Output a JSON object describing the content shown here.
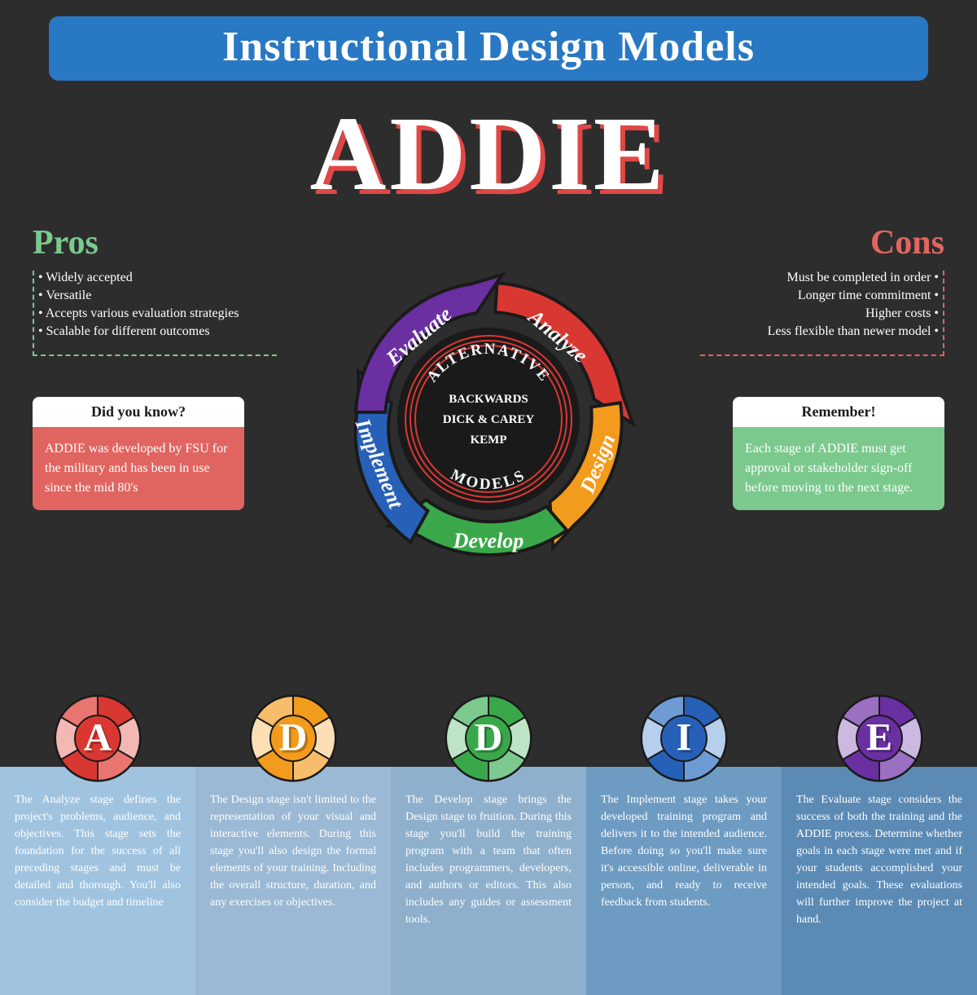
{
  "header": {
    "title": "Instructional Design Models"
  },
  "main_title": "ADDIE",
  "colors": {
    "banner": "#2878c4",
    "pros": "#7bc98d",
    "cons": "#e06560",
    "bg": "#2d2d2d",
    "stage_bgs": [
      "#a0c4e0",
      "#9bb9d4",
      "#8fb0cc",
      "#6e9bc2",
      "#5b8ab5"
    ]
  },
  "pros": {
    "title": "Pros",
    "items": [
      "• Widely accepted",
      "• Versatile",
      "• Accepts various evaluation strategies",
      "• Scalable for different outcomes"
    ]
  },
  "cons": {
    "title": "Cons",
    "items": [
      "Must be completed in order •",
      "Longer time commitment •",
      "Higher costs •",
      "Less flexible than newer model •"
    ]
  },
  "callout_left": {
    "header": "Did you know?",
    "body": "ADDIE was developed by FSU  for the military and has been in use since the mid 80's"
  },
  "callout_right": {
    "header": "Remember!",
    "body": "Each stage of ADDIE must get approval or stakeholder sign-off before moving to the next stage."
  },
  "cycle": {
    "segments": [
      {
        "label": "Analyze",
        "color": "#d93832"
      },
      {
        "label": "Design",
        "color": "#f39b1c"
      },
      {
        "label": "Develop",
        "color": "#3aa84a"
      },
      {
        "label": "Implement",
        "color": "#2760b7"
      },
      {
        "label": "Evaluate",
        "color": "#6a2fa0"
      }
    ],
    "center": {
      "top": "ALTERNATIVE",
      "lines": [
        "BACKWARDS",
        "DICK & CAREY",
        "KEMP"
      ],
      "bottom": "MODELS"
    }
  },
  "stages": [
    {
      "letter": "A",
      "color_dark": "#d93832",
      "color_mid": "#e8756f",
      "color_light": "#f4b8b4",
      "bg": "#a0c4e0",
      "text": "The Analyze stage defines the project's problems, audience, and objectives. This stage sets the foundation for the success of all preceding stages and must be detailed and thorough. You'll also consider  the budget and timeline"
    },
    {
      "letter": "D",
      "color_dark": "#f39b1c",
      "color_mid": "#f7bd6a",
      "color_light": "#fcdfb5",
      "bg": "#9bb9d4",
      "text": "The Design stage isn't limited to the representation of your visual and interactive elements. During this stage you'll also design the formal elements of your training. Including the overall structure, duration, and any exercises or objectives."
    },
    {
      "letter": "D",
      "color_dark": "#3aa84a",
      "color_mid": "#7bc98d",
      "color_light": "#bde4c6",
      "bg": "#8fb0cc",
      "text": "The Develop stage brings the Design stage to fruition. During this stage you'll build the training program with a team that often includes programmers, developers, and authors or editors. This also includes any guides or assessment tools."
    },
    {
      "letter": "I",
      "color_dark": "#2760b7",
      "color_mid": "#6e9bd4",
      "color_light": "#b7cfec",
      "bg": "#6e9bc2",
      "text": "The Implement stage takes your developed training program and delivers it to the intended audience. Before doing so you'll make sure it's accessible online, deliverable in person, and ready to receive feedback from students."
    },
    {
      "letter": "E",
      "color_dark": "#6a2fa0",
      "color_mid": "#9b6fc2",
      "color_light": "#cdb8e1",
      "bg": "#5b8ab5",
      "text": "The Evaluate stage considers the success of both the training and the ADDIE process. Determine whether goals in each stage were met and if your students accomplished your intended goals. These evaluations will further improve the project at hand."
    }
  ]
}
